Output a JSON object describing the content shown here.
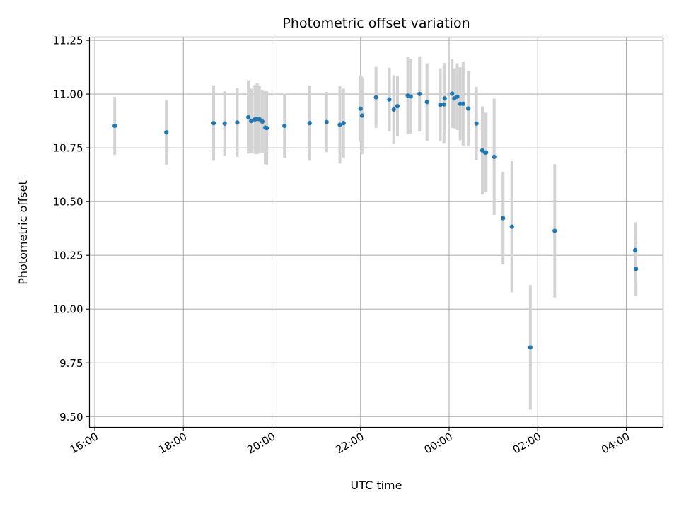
{
  "chart_data": {
    "type": "scatter",
    "title": "Photometric offset variation",
    "xlabel": "UTC time",
    "ylabel": "Photometric offset",
    "x_ticks": [
      "16:00",
      "18:00",
      "20:00",
      "22:00",
      "00:00",
      "02:00",
      "04:00"
    ],
    "x_tick_hours": [
      16,
      18,
      20,
      22,
      24,
      26,
      28
    ],
    "xlim_hours": [
      15.88,
      28.83
    ],
    "y_ticks": [
      "9.50",
      "9.75",
      "10.00",
      "10.25",
      "10.50",
      "10.75",
      "11.00",
      "11.25"
    ],
    "ylim": [
      9.45,
      11.265
    ],
    "grid": true,
    "colors": {
      "marker": "#1f77b4",
      "errorbar": "#d3d3d3",
      "grid": "#b0b0b0"
    },
    "series": [
      {
        "x": [
          "16:27",
          "17:37",
          "18:41",
          "18:56",
          "19:13",
          "19:28",
          "19:32",
          "19:37",
          "19:40",
          "19:43",
          "19:47",
          "19:51",
          "19:53",
          "20:17",
          "20:51",
          "21:14",
          "21:32",
          "21:37",
          "21:60",
          "22:02",
          "22:21",
          "22:39",
          "22:45",
          "22:50",
          "23:04",
          "23:08",
          "23:20",
          "23:30",
          "23:48",
          "23:53",
          "23:54",
          "24:04",
          "24:07",
          "24:11",
          "24:15",
          "24:19",
          "24:26",
          "24:37",
          "24:45",
          "24:49",
          "24:50",
          "25:01",
          "25:13",
          "25:25",
          "25:50",
          "26:23",
          "28:12",
          "28:13"
        ],
        "y": [
          10.852,
          10.822,
          10.865,
          10.863,
          10.868,
          10.893,
          10.875,
          10.882,
          10.885,
          10.883,
          10.872,
          10.844,
          10.842,
          10.852,
          10.865,
          10.87,
          10.857,
          10.865,
          10.932,
          10.9,
          10.985,
          10.975,
          10.928,
          10.944,
          10.993,
          10.989,
          11.001,
          10.963,
          10.95,
          10.952,
          10.98,
          11.002,
          10.98,
          10.988,
          10.955,
          10.955,
          10.933,
          10.863,
          10.738,
          10.728,
          10.728,
          10.708,
          10.423,
          10.383,
          9.822,
          10.364,
          10.274,
          10.187
        ],
        "err": [
          0.135,
          0.15,
          0.175,
          0.15,
          0.16,
          0.17,
          0.15,
          0.16,
          0.165,
          0.155,
          0.145,
          0.17,
          0.17,
          0.15,
          0.175,
          0.14,
          0.18,
          0.16,
          0.155,
          0.18,
          0.142,
          0.148,
          0.16,
          0.14,
          0.18,
          0.175,
          0.175,
          0.18,
          0.17,
          0.18,
          0.165,
          0.16,
          0.14,
          0.155,
          0.17,
          0.195,
          0.175,
          0.17,
          0.205,
          0.185,
          0.185,
          0.27,
          0.215,
          0.305,
          0.29,
          0.31,
          0.13,
          0.125
        ]
      }
    ]
  }
}
